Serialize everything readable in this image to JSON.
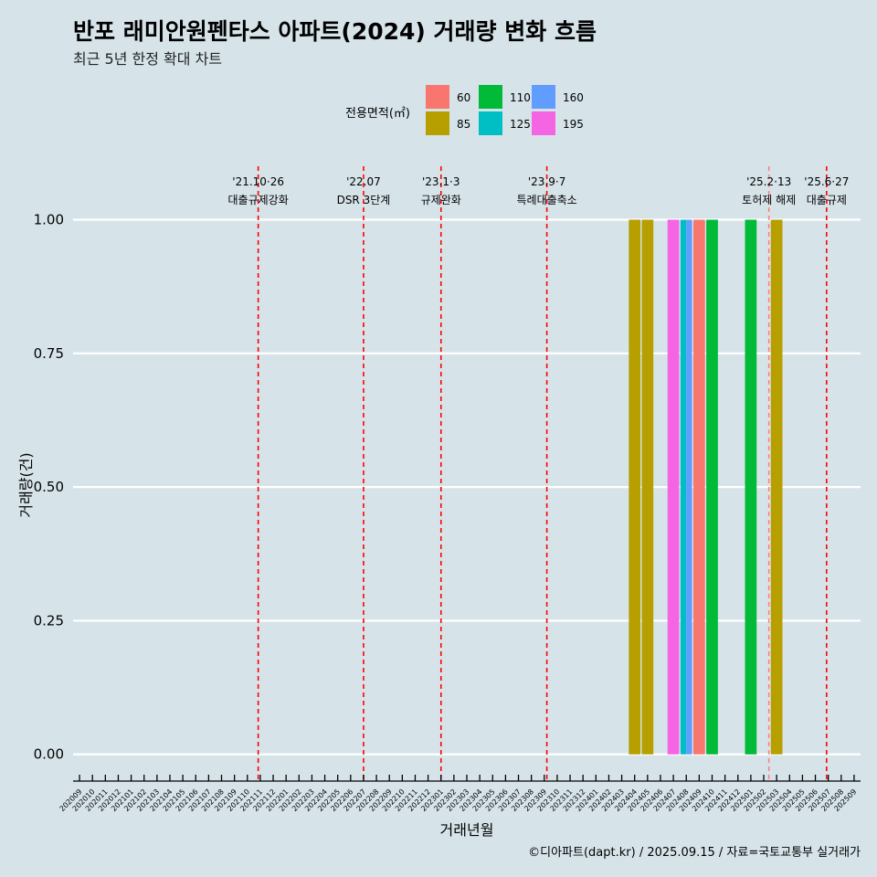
{
  "chart_data": {
    "type": "bar",
    "title": "반포 래미안원펜타스 아파트(2024) 거래량 변화 흐름",
    "subtitle": "최근 5년 한정 확대 차트",
    "xlabel": "거래년월",
    "ylabel": "거래량(건)",
    "caption": "©디아파트(dapt.kr) / 2025.09.15 / 자료=국토교통부 실거래가",
    "ylim": [
      -0.05,
      1.1
    ],
    "yticks": [
      0,
      0.25,
      0.5,
      0.75,
      1.0
    ],
    "ytick_labels": [
      "0.00",
      "0.25",
      "0.50",
      "0.75",
      "1.00"
    ],
    "grid": "horizontal",
    "legend": {
      "title": "전용면적(㎡)",
      "placement": "top",
      "entries": [
        {
          "label": "60",
          "color": "#f8766d"
        },
        {
          "label": "85",
          "color": "#b79f00"
        },
        {
          "label": "110",
          "color": "#00ba38"
        },
        {
          "label": "125",
          "color": "#00bfc4"
        },
        {
          "label": "160",
          "color": "#619cff"
        },
        {
          "label": "195",
          "color": "#f564e3"
        }
      ]
    },
    "categories": [
      "202009",
      "202010",
      "202011",
      "202012",
      "202101",
      "202102",
      "202103",
      "202104",
      "202105",
      "202106",
      "202107",
      "202108",
      "202109",
      "202110",
      "202111",
      "202112",
      "202201",
      "202202",
      "202203",
      "202204",
      "202205",
      "202206",
      "202207",
      "202208",
      "202209",
      "202210",
      "202211",
      "202212",
      "202301",
      "202302",
      "202303",
      "202304",
      "202305",
      "202306",
      "202307",
      "202308",
      "202309",
      "202310",
      "202311",
      "202312",
      "202401",
      "202402",
      "202403",
      "202404",
      "202405",
      "202406",
      "202407",
      "202408",
      "202409",
      "202410",
      "202411",
      "202412",
      "202501",
      "202502",
      "202503",
      "202504",
      "202505",
      "202506",
      "202507",
      "202508",
      "202509"
    ],
    "bars": [
      {
        "month": "202404",
        "area": "85",
        "value": 1
      },
      {
        "month": "202405",
        "area": "85",
        "value": 1
      },
      {
        "month": "202407",
        "area": "195",
        "value": 1
      },
      {
        "month": "202408",
        "area": "125",
        "value": 1
      },
      {
        "month": "202408",
        "area": "160",
        "value": 1
      },
      {
        "month": "202409",
        "area": "60",
        "value": 1
      },
      {
        "month": "202410",
        "area": "110",
        "value": 1
      },
      {
        "month": "202501",
        "area": "110",
        "value": 1
      },
      {
        "month": "202503",
        "area": "85",
        "value": 1
      }
    ],
    "annotations": [
      {
        "month": "202110",
        "offset": 0.84,
        "date": "'21.10·26",
        "label": "대출규제강화",
        "color": "#ff0000"
      },
      {
        "month": "202207",
        "offset": 0.0,
        "date": "'22.07",
        "label": "DSR 3단계",
        "color": "#ff0000"
      },
      {
        "month": "202301",
        "offset": 0.0,
        "date": "'23.1·3",
        "label": "규제완화",
        "color": "#ff0000"
      },
      {
        "month": "202309",
        "offset": 0.2,
        "date": "'23.9·7",
        "label": "특례대출축소",
        "color": "#ff0000"
      },
      {
        "month": "202502",
        "offset": 0.4,
        "date": "'25.2·13",
        "label": "토허제 해제",
        "color": "#ff8080"
      },
      {
        "month": "202506",
        "offset": 0.87,
        "date": "'25.6·27",
        "label": "대출규제",
        "color": "#ff0000"
      }
    ]
  }
}
